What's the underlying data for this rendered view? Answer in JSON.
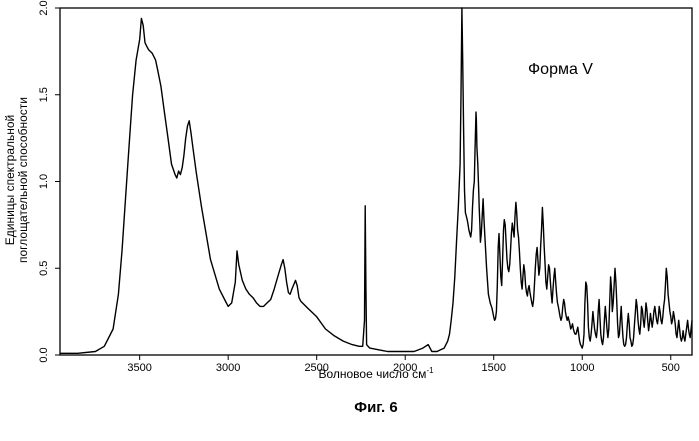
{
  "chart_data": {
    "type": "line",
    "title": "",
    "xlabel": "Волновое число см",
    "xlabel_sup": "-1",
    "ylabel_lines": [
      "Единицы спектральной",
      "поглощательной способности"
    ],
    "annotation": "Форма V",
    "caption": "Фиг. 6",
    "xlim": [
      3950,
      380
    ],
    "ylim": [
      0,
      2.0
    ],
    "x_reversed": true,
    "grid": false,
    "x_ticks": [
      3500,
      3000,
      2500,
      2000,
      1500,
      1000,
      500
    ],
    "x_tick_labels": [
      "3500",
      "3000",
      "2500",
      "2000",
      "1500",
      "1000",
      "500"
    ],
    "y_ticks": [
      0.0,
      0.5,
      1.0,
      1.5,
      2.0
    ],
    "y_tick_labels": [
      "0.0",
      "0.5",
      "1.0",
      "1.5",
      "2.0"
    ],
    "series": [
      {
        "x": [
          3950,
          3850,
          3750,
          3700,
          3650,
          3620,
          3600,
          3580,
          3560,
          3540,
          3520,
          3500,
          3490,
          3480,
          3470,
          3460,
          3450,
          3430,
          3410,
          3400,
          3380,
          3360,
          3340,
          3320,
          3300,
          3290,
          3280,
          3270,
          3260,
          3250,
          3240,
          3230,
          3220,
          3210,
          3200,
          3180,
          3150,
          3100,
          3050,
          3020,
          3000,
          2980,
          2960,
          2950,
          2940,
          2920,
          2900,
          2880,
          2860,
          2840,
          2820,
          2800,
          2780,
          2760,
          2740,
          2720,
          2700,
          2690,
          2680,
          2670,
          2660,
          2650,
          2640,
          2620,
          2610,
          2600,
          2590,
          2570,
          2550,
          2520,
          2500,
          2450,
          2400,
          2350,
          2300,
          2260,
          2240,
          2230,
          2226,
          2222,
          2218,
          2210,
          2200,
          2150,
          2100,
          2050,
          2000,
          1950,
          1900,
          1870,
          1850,
          1820,
          1800,
          1780,
          1760,
          1750,
          1740,
          1730,
          1720,
          1710,
          1700,
          1690,
          1685,
          1680,
          1675,
          1670,
          1665,
          1660,
          1655,
          1650,
          1645,
          1640,
          1635,
          1630,
          1625,
          1620,
          1615,
          1610,
          1605,
          1600,
          1598,
          1595,
          1590,
          1585,
          1582,
          1578,
          1575,
          1570,
          1565,
          1560,
          1555,
          1550,
          1540,
          1530,
          1520,
          1510,
          1500,
          1495,
          1490,
          1485,
          1480,
          1475,
          1470,
          1465,
          1460,
          1455,
          1450,
          1445,
          1440,
          1435,
          1430,
          1425,
          1420,
          1415,
          1410,
          1405,
          1400,
          1395,
          1390,
          1385,
          1380,
          1375,
          1370,
          1365,
          1360,
          1355,
          1350,
          1345,
          1340,
          1335,
          1330,
          1325,
          1320,
          1315,
          1310,
          1305,
          1300,
          1295,
          1290,
          1285,
          1280,
          1275,
          1270,
          1265,
          1260,
          1255,
          1250,
          1245,
          1240,
          1235,
          1230,
          1225,
          1220,
          1215,
          1210,
          1205,
          1200,
          1195,
          1190,
          1185,
          1180,
          1175,
          1170,
          1165,
          1160,
          1155,
          1150,
          1145,
          1140,
          1135,
          1130,
          1125,
          1120,
          1115,
          1110,
          1105,
          1100,
          1095,
          1090,
          1085,
          1080,
          1075,
          1070,
          1065,
          1060,
          1055,
          1050,
          1045,
          1040,
          1035,
          1030,
          1025,
          1020,
          1015,
          1010,
          1005,
          1000,
          995,
          990,
          985,
          980,
          975,
          970,
          965,
          960,
          955,
          950,
          945,
          940,
          935,
          930,
          925,
          920,
          915,
          910,
          905,
          900,
          895,
          890,
          885,
          880,
          875,
          870,
          865,
          860,
          855,
          850,
          845,
          840,
          835,
          830,
          825,
          820,
          815,
          810,
          805,
          800,
          795,
          790,
          785,
          780,
          775,
          770,
          765,
          760,
          755,
          750,
          745,
          740,
          735,
          730,
          725,
          720,
          715,
          710,
          705,
          700,
          695,
          690,
          685,
          680,
          675,
          670,
          665,
          660,
          655,
          650,
          645,
          640,
          635,
          630,
          625,
          620,
          615,
          610,
          605,
          600,
          595,
          590,
          585,
          580,
          575,
          570,
          565,
          560,
          555,
          550,
          545,
          540,
          535,
          530,
          525,
          520,
          515,
          510,
          505,
          500,
          495,
          490,
          485,
          480,
          475,
          470,
          465,
          460,
          455,
          450,
          445,
          440,
          435,
          430,
          425,
          420,
          415,
          410,
          405,
          400,
          395,
          390,
          385,
          380
        ],
        "y": [
          0.01,
          0.01,
          0.02,
          0.05,
          0.15,
          0.35,
          0.6,
          0.9,
          1.2,
          1.5,
          1.7,
          1.82,
          1.94,
          1.9,
          1.8,
          1.78,
          1.76,
          1.74,
          1.7,
          1.65,
          1.55,
          1.4,
          1.25,
          1.1,
          1.04,
          1.02,
          1.06,
          1.04,
          1.08,
          1.15,
          1.25,
          1.32,
          1.35,
          1.28,
          1.2,
          1.05,
          0.85,
          0.55,
          0.38,
          0.32,
          0.28,
          0.3,
          0.42,
          0.6,
          0.52,
          0.43,
          0.38,
          0.35,
          0.33,
          0.3,
          0.28,
          0.28,
          0.3,
          0.32,
          0.38,
          0.45,
          0.52,
          0.55,
          0.5,
          0.42,
          0.36,
          0.35,
          0.38,
          0.43,
          0.4,
          0.33,
          0.31,
          0.29,
          0.27,
          0.24,
          0.22,
          0.15,
          0.11,
          0.08,
          0.06,
          0.05,
          0.05,
          0.2,
          0.86,
          0.4,
          0.06,
          0.05,
          0.04,
          0.03,
          0.02,
          0.02,
          0.02,
          0.02,
          0.04,
          0.06,
          0.02,
          0.02,
          0.03,
          0.04,
          0.08,
          0.12,
          0.2,
          0.3,
          0.45,
          0.65,
          0.85,
          1.1,
          1.5,
          2.0,
          1.7,
          1.3,
          0.95,
          0.82,
          0.8,
          0.78,
          0.75,
          0.72,
          0.7,
          0.68,
          0.72,
          0.85,
          0.95,
          1.0,
          1.2,
          1.4,
          1.35,
          1.2,
          1.1,
          0.95,
          0.85,
          0.75,
          0.65,
          0.7,
          0.8,
          0.9,
          0.78,
          0.68,
          0.5,
          0.35,
          0.3,
          0.27,
          0.22,
          0.2,
          0.21,
          0.25,
          0.4,
          0.62,
          0.7,
          0.58,
          0.45,
          0.4,
          0.55,
          0.72,
          0.78,
          0.75,
          0.65,
          0.55,
          0.5,
          0.48,
          0.52,
          0.6,
          0.7,
          0.76,
          0.72,
          0.68,
          0.8,
          0.88,
          0.82,
          0.72,
          0.68,
          0.6,
          0.5,
          0.42,
          0.38,
          0.45,
          0.52,
          0.48,
          0.4,
          0.36,
          0.34,
          0.38,
          0.4,
          0.36,
          0.33,
          0.3,
          0.28,
          0.32,
          0.4,
          0.5,
          0.58,
          0.62,
          0.54,
          0.46,
          0.5,
          0.62,
          0.72,
          0.85,
          0.75,
          0.62,
          0.52,
          0.42,
          0.38,
          0.45,
          0.52,
          0.5,
          0.42,
          0.35,
          0.3,
          0.38,
          0.45,
          0.5,
          0.42,
          0.35,
          0.3,
          0.28,
          0.25,
          0.22,
          0.2,
          0.22,
          0.28,
          0.32,
          0.3,
          0.25,
          0.22,
          0.2,
          0.22,
          0.2,
          0.18,
          0.15,
          0.16,
          0.18,
          0.15,
          0.13,
          0.12,
          0.12,
          0.14,
          0.16,
          0.12,
          0.08,
          0.06,
          0.05,
          0.04,
          0.06,
          0.12,
          0.3,
          0.42,
          0.4,
          0.3,
          0.16,
          0.1,
          0.08,
          0.12,
          0.18,
          0.25,
          0.2,
          0.15,
          0.12,
          0.1,
          0.15,
          0.25,
          0.32,
          0.22,
          0.12,
          0.08,
          0.06,
          0.1,
          0.2,
          0.28,
          0.22,
          0.15,
          0.1,
          0.15,
          0.3,
          0.45,
          0.38,
          0.25,
          0.3,
          0.4,
          0.5,
          0.42,
          0.3,
          0.18,
          0.1,
          0.12,
          0.2,
          0.28,
          0.18,
          0.1,
          0.06,
          0.05,
          0.06,
          0.1,
          0.18,
          0.24,
          0.18,
          0.1,
          0.08,
          0.05,
          0.06,
          0.1,
          0.18,
          0.25,
          0.32,
          0.28,
          0.2,
          0.15,
          0.12,
          0.18,
          0.28,
          0.26,
          0.2,
          0.16,
          0.22,
          0.3,
          0.26,
          0.2,
          0.14,
          0.18,
          0.24,
          0.2,
          0.16,
          0.2,
          0.25,
          0.28,
          0.24,
          0.2,
          0.18,
          0.22,
          0.28,
          0.25,
          0.2,
          0.18,
          0.22,
          0.28,
          0.32,
          0.4,
          0.5,
          0.45,
          0.35,
          0.3,
          0.25,
          0.22,
          0.18,
          0.2,
          0.25,
          0.22,
          0.18,
          0.12,
          0.1,
          0.15,
          0.2,
          0.15,
          0.1,
          0.08,
          0.1,
          0.14,
          0.1,
          0.08,
          0.12,
          0.16,
          0.2,
          0.15,
          0.12,
          0.1,
          0.15,
          0.2
        ]
      }
    ]
  }
}
